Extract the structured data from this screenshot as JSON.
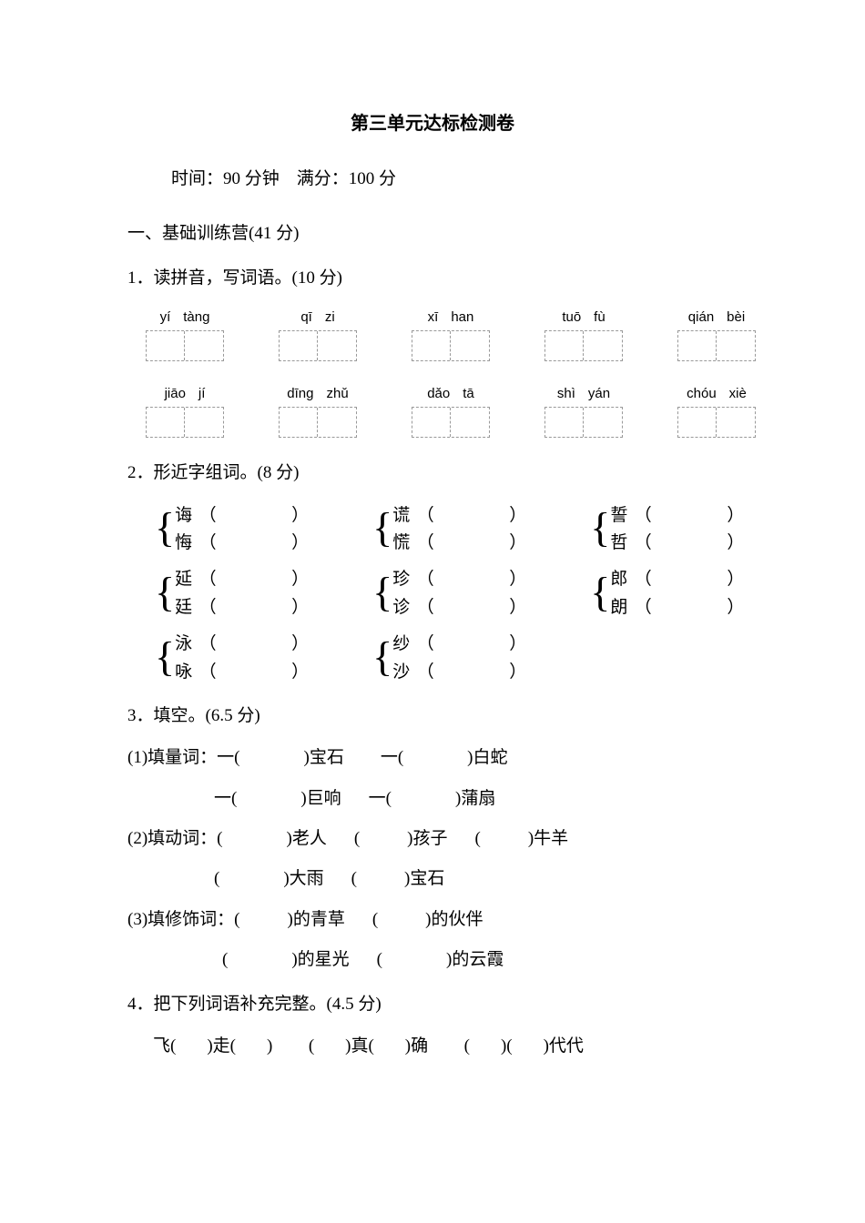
{
  "title": "第三单元达标检测卷",
  "meta": "时间：90 分钟　满分：100 分",
  "section1": "一、基础训练营(41 分)",
  "q1": {
    "head": "1．读拼音，写词语。(10 分)",
    "rows": [
      [
        [
          "yí",
          "tàng"
        ],
        [
          "qī",
          "zi"
        ],
        [
          "xī",
          "han"
        ],
        [
          "tuō",
          "fù"
        ],
        [
          "qián",
          "bèi"
        ]
      ],
      [
        [
          "jiāo",
          "jí"
        ],
        [
          "dīng",
          "zhǔ"
        ],
        [
          "dǎo",
          "tā"
        ],
        [
          "shì",
          "yán"
        ],
        [
          "chóu",
          "xiè"
        ]
      ]
    ]
  },
  "q2": {
    "head": "2．形近字组词。(8 分)",
    "rows": [
      [
        [
          "诲",
          "悔"
        ],
        [
          "谎",
          "慌"
        ],
        [
          "誓",
          "哲"
        ]
      ],
      [
        [
          "延",
          "廷"
        ],
        [
          "珍",
          "诊"
        ],
        [
          "郎",
          "朗"
        ]
      ],
      [
        [
          "泳",
          "咏"
        ],
        [
          "纱",
          "沙"
        ]
      ]
    ]
  },
  "q3": {
    "head": "3．填空。(6.5 分)",
    "part1": {
      "label": "(1)填量词：",
      "items": [
        "宝石",
        "白蛇",
        "巨响",
        "蒲扇"
      ]
    },
    "part2": {
      "label": "(2)填动词：",
      "items": [
        "老人",
        "孩子",
        "牛羊",
        "大雨",
        "宝石"
      ]
    },
    "part3": {
      "label": "(3)填修饰词：",
      "items": [
        "的青草",
        "的伙伴",
        "的星光",
        "的云霞"
      ]
    }
  },
  "q4": {
    "head": "4．把下列词语补充完整。(4.5 分)",
    "line1": {
      "a1": "飞(",
      "a2": ")走(",
      "a3": ")",
      "b1": "(",
      "b2": ")真(",
      "b3": ")确",
      "c1": "(",
      "c2": ")(",
      "c3": ")代代"
    }
  }
}
